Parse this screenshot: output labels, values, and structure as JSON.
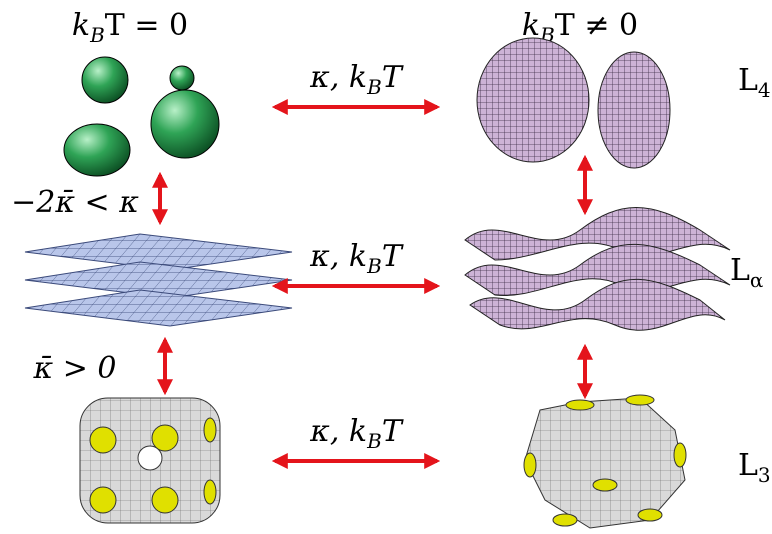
{
  "header": {
    "left": {
      "base": "k",
      "sub": "B",
      "tail": "T = 0"
    },
    "right": {
      "base": "k",
      "sub": "B",
      "tail": "T ≠ 0"
    }
  },
  "arrows": [
    {
      "base": "κ, k",
      "sub": "B",
      "tail": "T"
    },
    {
      "base": "κ, k",
      "sub": "B",
      "tail": "T"
    },
    {
      "base": "κ, k",
      "sub": "B",
      "tail": "T"
    }
  ],
  "conditions": [
    "−2κ̄ < κ",
    "κ̄ > 0"
  ],
  "phases": [
    {
      "base": "L",
      "sub": "4"
    },
    {
      "base": "L",
      "sub": "α"
    },
    {
      "base": "L",
      "sub": "3"
    }
  ]
}
